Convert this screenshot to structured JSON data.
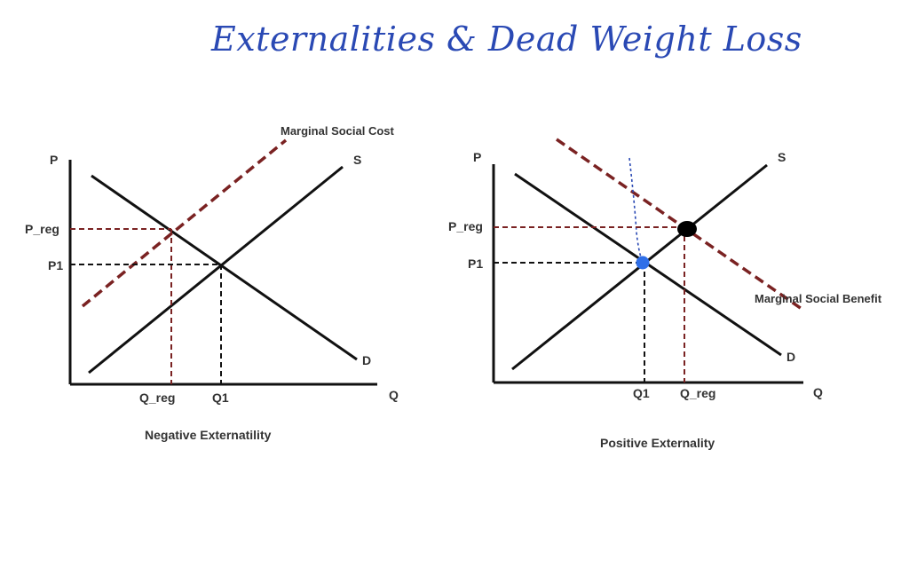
{
  "title": "Externalities & Dead Weight Loss",
  "colors": {
    "ink": "#111111",
    "label": "#333333",
    "social_curve": "#7a2222",
    "pen_blue": "#2a49b4",
    "dot_blue": "#2f6fe8",
    "dot_black": "#000000"
  },
  "graphs": {
    "negative": {
      "caption": "Negative Externatility",
      "axis_y": "P",
      "axis_x": "Q",
      "supply_label": "S",
      "demand_label": "D",
      "social_label": "Marginal Social Cost",
      "price_reg_label": "P_reg",
      "price_eq_label": "P1",
      "qty_reg_label": "Q_reg",
      "qty_eq_label": "Q1"
    },
    "positive": {
      "caption": "Positive Externality",
      "axis_y": "P",
      "axis_x": "Q",
      "supply_label": "S",
      "demand_label": "D",
      "social_label": "Marginal Social Benefit",
      "price_reg_label": "P_reg",
      "price_eq_label": "P1",
      "qty_eq_label": "Q1",
      "qty_reg_label": "Q_reg"
    }
  }
}
